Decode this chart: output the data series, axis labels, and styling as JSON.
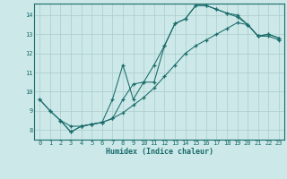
{
  "xlabel": "Humidex (Indice chaleur)",
  "bg_color": "#cce8e8",
  "line_color": "#1a6b6b",
  "grid_color": "#aacccc",
  "xlim": [
    -0.5,
    23.5
  ],
  "ylim": [
    7.5,
    14.6
  ],
  "xticks": [
    0,
    1,
    2,
    3,
    4,
    5,
    6,
    7,
    8,
    9,
    10,
    11,
    12,
    13,
    14,
    15,
    16,
    17,
    18,
    19,
    20,
    21,
    22,
    23
  ],
  "yticks": [
    8,
    9,
    10,
    11,
    12,
    13,
    14
  ],
  "line1_x": [
    0,
    1,
    2,
    3,
    4,
    5,
    6,
    7,
    8,
    9,
    10,
    11,
    12,
    13,
    14,
    15,
    16,
    17,
    18,
    19,
    20,
    21,
    22,
    23
  ],
  "line1_y": [
    9.6,
    9.0,
    8.5,
    7.9,
    8.2,
    8.3,
    8.4,
    8.6,
    9.6,
    10.4,
    10.5,
    11.4,
    12.4,
    13.55,
    13.8,
    14.5,
    14.5,
    14.3,
    14.1,
    13.9,
    13.5,
    12.9,
    13.0,
    12.8
  ],
  "line2_x": [
    2,
    3,
    4,
    5,
    6,
    7,
    8,
    9,
    10,
    11,
    12,
    13,
    14,
    15,
    16,
    17,
    18,
    19,
    20,
    21,
    22,
    23
  ],
  "line2_y": [
    8.5,
    7.9,
    8.2,
    8.3,
    8.4,
    9.6,
    11.4,
    9.6,
    10.5,
    10.5,
    12.4,
    13.55,
    13.8,
    14.5,
    14.5,
    14.3,
    14.1,
    14.0,
    13.5,
    12.9,
    13.0,
    12.8
  ],
  "line3_x": [
    0,
    1,
    2,
    3,
    4,
    5,
    6,
    7,
    8,
    9,
    10,
    11,
    12,
    13,
    14,
    15,
    16,
    17,
    18,
    19,
    20,
    21,
    22,
    23
  ],
  "line3_y": [
    9.6,
    9.0,
    8.5,
    8.2,
    8.2,
    8.3,
    8.4,
    8.6,
    8.9,
    9.3,
    9.7,
    10.2,
    10.8,
    11.4,
    12.0,
    12.4,
    12.7,
    13.0,
    13.3,
    13.6,
    13.5,
    12.9,
    12.9,
    12.7
  ]
}
